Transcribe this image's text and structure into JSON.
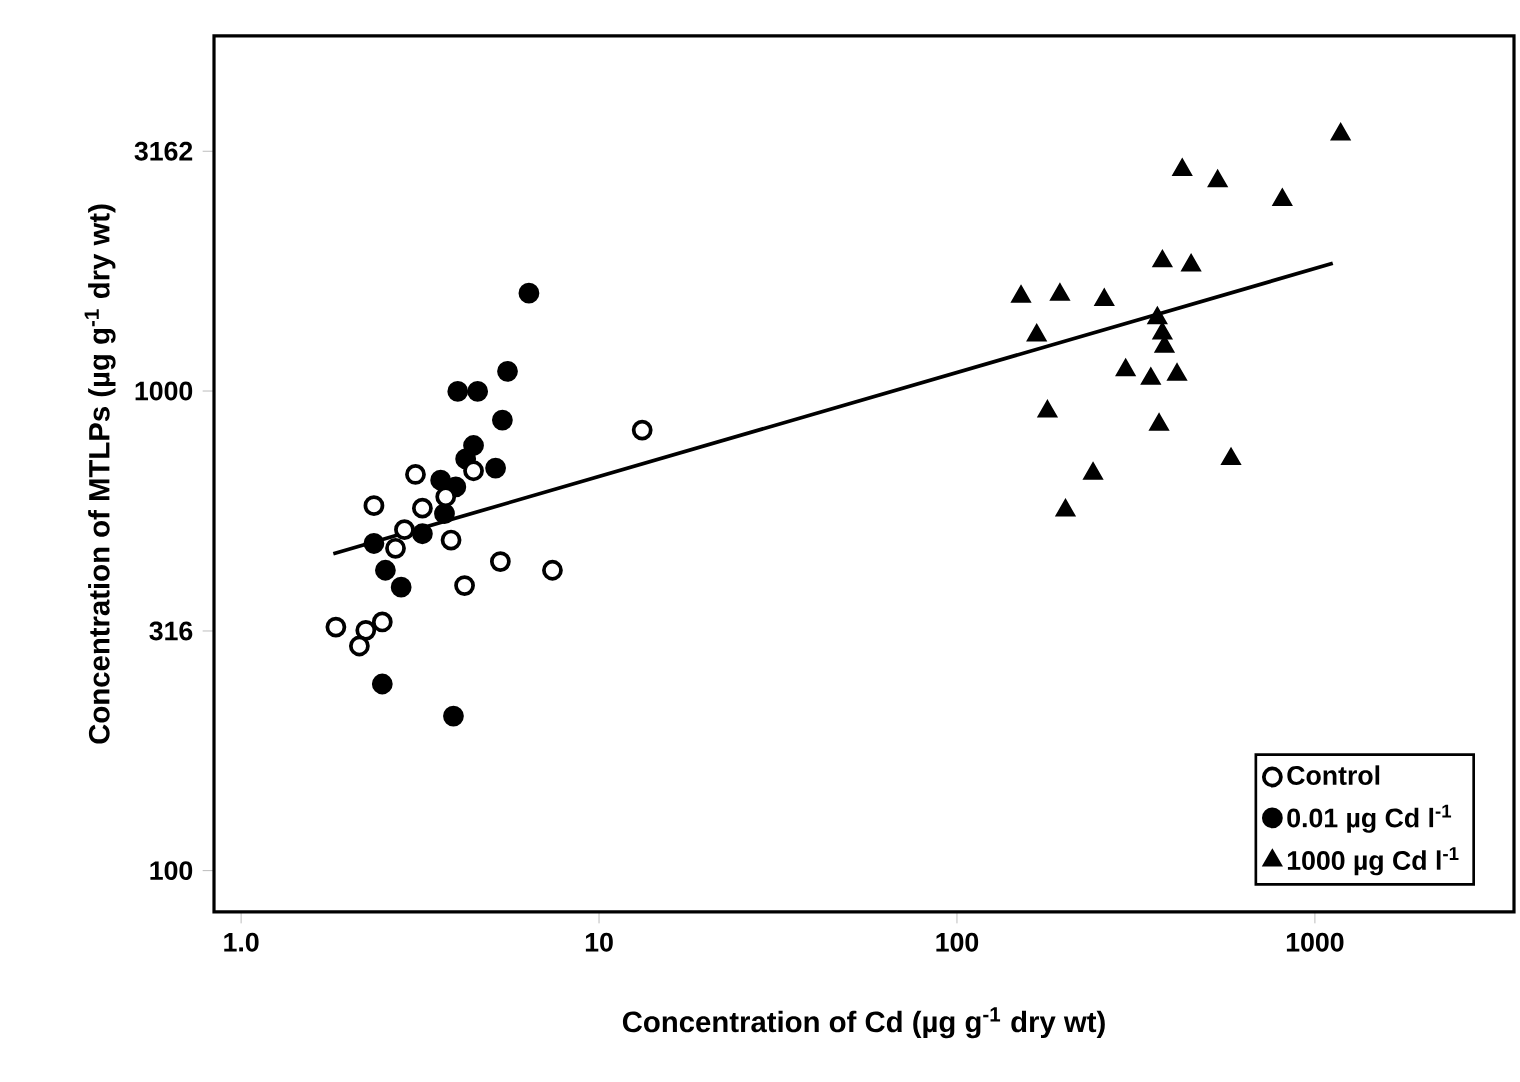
{
  "chart_data": {
    "type": "scatter",
    "xlabel": "Concentration of Cd (µg g$^{-1}$ dry wt)",
    "ylabel": "Concentration of MTLPs (µg g$^{-1}$ dry wt)",
    "log": "xy",
    "xlim": [
      0.84,
      3600
    ],
    "ylim": [
      82,
      5500
    ],
    "xticks": [
      {
        "value": 1,
        "label": "1.0"
      },
      10,
      100,
      1000
    ],
    "yticks": [
      100,
      316,
      1000,
      3162
    ],
    "legend": "bottom right",
    "grid": false,
    "series": [
      {
        "name": "Control",
        "color": "#ffffff",
        "marker": "circle",
        "x": [
          13.2,
          3.07,
          2.35,
          3.21,
          2.86,
          3.73,
          4.46,
          2.7,
          3.86,
          5.3,
          7.41,
          4.21,
          1.84,
          2.48,
          2.23,
          2.14
        ],
        "values": [
          829,
          670,
          577,
          570,
          514,
          602,
          682,
          470,
          489,
          441,
          423,
          393,
          322,
          330,
          317,
          294
        ]
      },
      {
        "name": "0.01 µg Cd l$^{-1}$",
        "color": "#000000",
        "marker": "circle",
        "x": [
          6.37,
          5.55,
          4.03,
          4.58,
          5.37,
          4.46,
          4.24,
          5.14,
          3.61,
          3.98,
          3.7,
          3.21,
          2.35,
          2.53,
          2.8,
          2.48,
          3.92
        ],
        "values": [
          1600,
          1099,
          998,
          998,
          870,
          770,
          722,
          691,
          652,
          631,
          555,
          504,
          481,
          423,
          390,
          245,
          210
        ]
      },
      {
        "name": "1000 µg Cd l$^{-1}$",
        "color": "#000000",
        "marker": "triangle",
        "x": [
          1180,
          426,
          535,
          811,
          375,
          451,
          151,
          194,
          258,
          167,
          363,
          375,
          380,
          296,
          348,
          412,
          179,
          367,
          583,
          240,
          201
        ],
        "values": [
          3430,
          2893,
          2740,
          2505,
          1865,
          1829,
          1574,
          1589,
          1549,
          1307,
          1420,
          1319,
          1238,
          1106,
          1061,
          1082,
          907,
          851,
          722,
          673,
          564
        ]
      },
      {
        "type": "line",
        "color": "#000000",
        "x": [
          1.81,
          1122
        ],
        "values": [
          458,
          1847
        ]
      }
    ]
  }
}
